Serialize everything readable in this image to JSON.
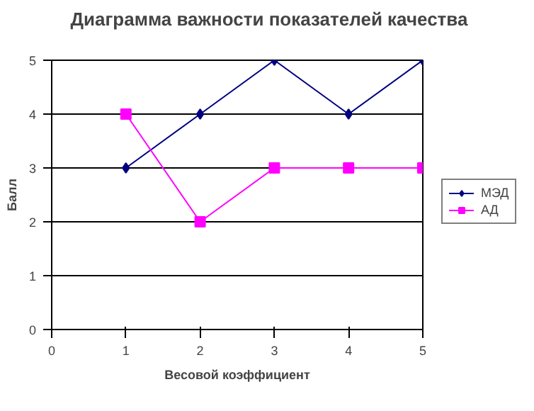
{
  "chart_data": {
    "type": "line",
    "title": "Диаграмма важности показателей качества",
    "xlabel": "Весовой коэффициент",
    "ylabel": "Балл",
    "x": [
      1,
      2,
      3,
      4,
      5
    ],
    "series": [
      {
        "name": "МЭД",
        "color": "#000080",
        "values": [
          3,
          4,
          5,
          4,
          5
        ],
        "marker": "diamond"
      },
      {
        "name": "АД",
        "color": "#ff00ff",
        "values": [
          4,
          2,
          3,
          3,
          3
        ],
        "marker": "square"
      }
    ],
    "xlim": [
      0,
      5
    ],
    "xticks": [
      0,
      1,
      2,
      3,
      4,
      5
    ],
    "ylim": [
      0,
      5
    ],
    "yticks": [
      0,
      1,
      2,
      3,
      4,
      5
    ],
    "grid": "y",
    "legend": "right"
  }
}
